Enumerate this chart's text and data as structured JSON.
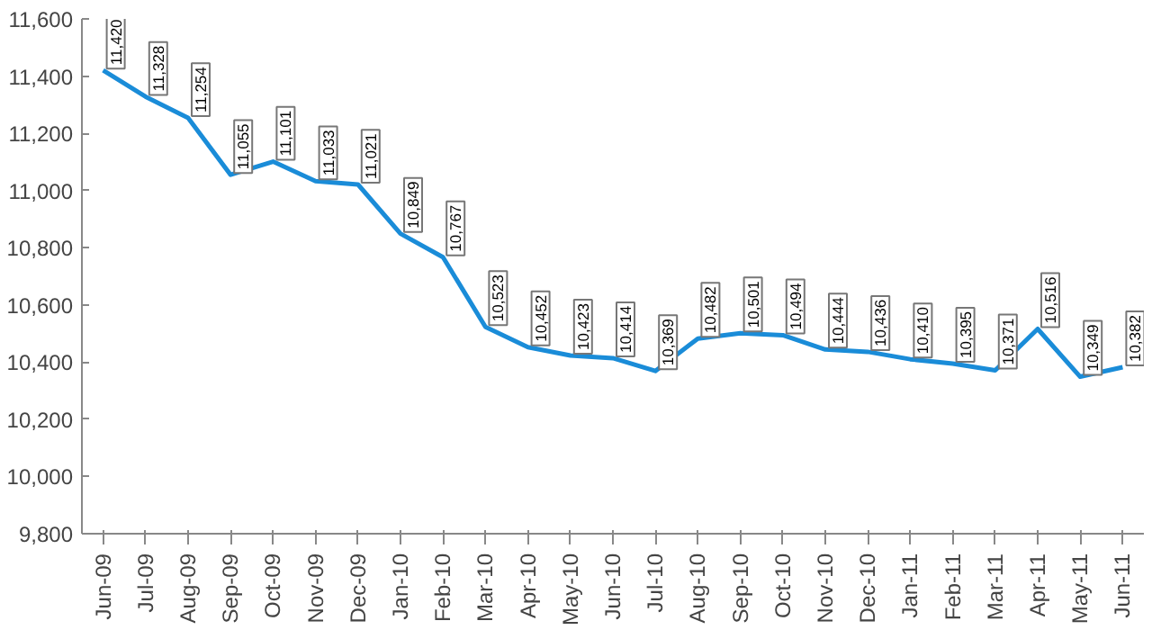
{
  "chart_data": {
    "type": "line",
    "categories": [
      "Jun-09",
      "Jul-09",
      "Aug-09",
      "Sep-09",
      "Oct-09",
      "Nov-09",
      "Dec-09",
      "Jan-10",
      "Feb-10",
      "Mar-10",
      "Apr-10",
      "May-10",
      "Jun-10",
      "Jul-10",
      "Aug-10",
      "Sep-10",
      "Oct-10",
      "Nov-10",
      "Dec-10",
      "Jan-11",
      "Feb-11",
      "Mar-11",
      "Apr-11",
      "May-11",
      "Jun-11"
    ],
    "series": [
      {
        "color": "#1a8cd8",
        "values": [
          11420,
          11328,
          11254,
          11055,
          11101,
          11033,
          11021,
          10849,
          10767,
          10523,
          10452,
          10423,
          10414,
          10369,
          10482,
          10501,
          10494,
          10444,
          10436,
          10410,
          10395,
          10371,
          10516,
          10349,
          10382
        ],
        "value_labels": [
          "11,420",
          "11,328",
          "11,254",
          "11,055",
          "11,101",
          "11,033",
          "11,021",
          "10,849",
          "10,767",
          "10,523",
          "10,452",
          "10,423",
          "10,414",
          "10,369",
          "10,482",
          "10,501",
          "10,494",
          "10,444",
          "10,436",
          "10,410",
          "10,395",
          "10,371",
          "10,516",
          "10,349",
          "10,382"
        ]
      }
    ],
    "ylim": [
      9800,
      11600
    ],
    "yticks": [
      {
        "value": 9800,
        "label": "9,800"
      },
      {
        "value": 10000,
        "label": "10,000"
      },
      {
        "value": 10200,
        "label": "10,200"
      },
      {
        "value": 10400,
        "label": "10,400"
      },
      {
        "value": 10600,
        "label": "10,600"
      },
      {
        "value": 10800,
        "label": "10,800"
      },
      {
        "value": 11000,
        "label": "11,000"
      },
      {
        "value": 11200,
        "label": "11,200"
      },
      {
        "value": 11400,
        "label": "11,400"
      },
      {
        "value": 11600,
        "label": "11,600"
      }
    ],
    "grid": false,
    "marker": "none",
    "line_style": "solid"
  }
}
